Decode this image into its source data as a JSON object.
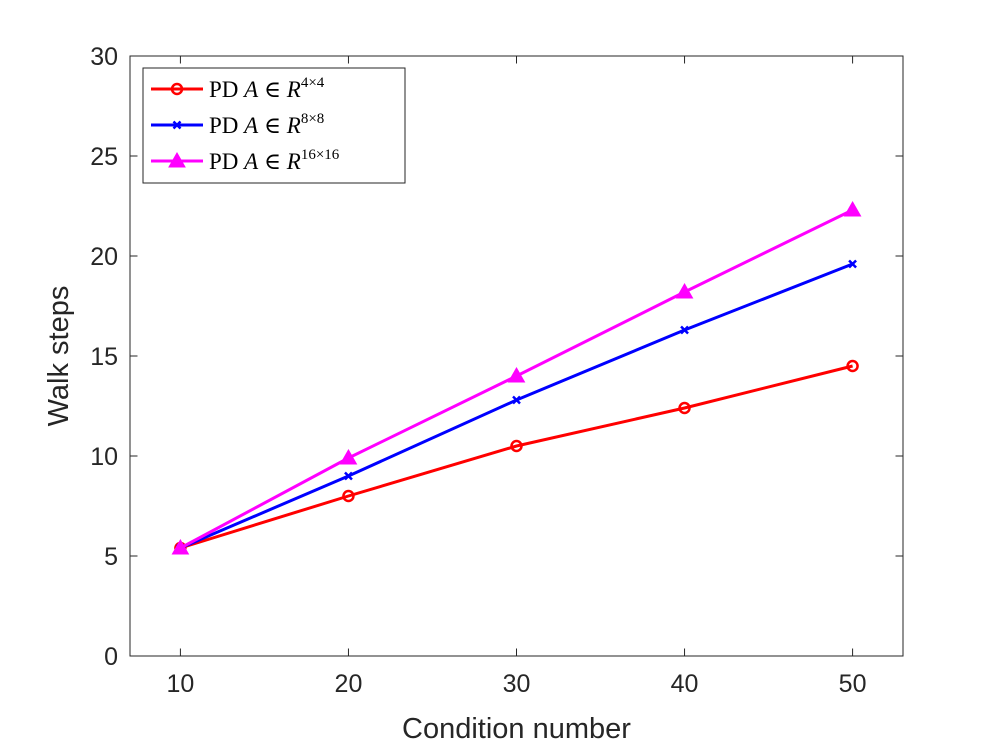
{
  "chart_data": {
    "type": "line",
    "title": "",
    "xlabel": "Condition number",
    "ylabel": "Walk steps",
    "x": [
      10,
      20,
      30,
      40,
      50
    ],
    "xlim": [
      7,
      53
    ],
    "ylim": [
      0,
      30
    ],
    "xticks": [
      10,
      20,
      30,
      40,
      50
    ],
    "yticks": [
      0,
      5,
      10,
      15,
      20,
      25,
      30
    ],
    "legend_position": "top-left",
    "series": [
      {
        "name": "PD A ∈ R^{4×4}",
        "label_main": "PD ",
        "label_var": "A",
        "label_in": " ∈ ",
        "label_set": "R",
        "label_sup": "4×4",
        "color": "#ff0000",
        "marker": "circle",
        "values": [
          5.4,
          8.0,
          10.5,
          12.4,
          14.5
        ]
      },
      {
        "name": "PD A ∈ R^{8×8}",
        "label_main": "PD ",
        "label_var": "A",
        "label_in": " ∈ ",
        "label_set": "R",
        "label_sup": "8×8",
        "color": "#0000ff",
        "marker": "x",
        "values": [
          5.4,
          9.0,
          12.8,
          16.3,
          19.6
        ]
      },
      {
        "name": "PD A ∈ R^{16×16}",
        "label_main": "PD ",
        "label_var": "A",
        "label_in": " ∈ ",
        "label_set": "R",
        "label_sup": "16×16",
        "color": "#ff00ff",
        "marker": "triangle",
        "values": [
          5.4,
          9.9,
          14.0,
          18.2,
          22.3
        ]
      }
    ]
  }
}
